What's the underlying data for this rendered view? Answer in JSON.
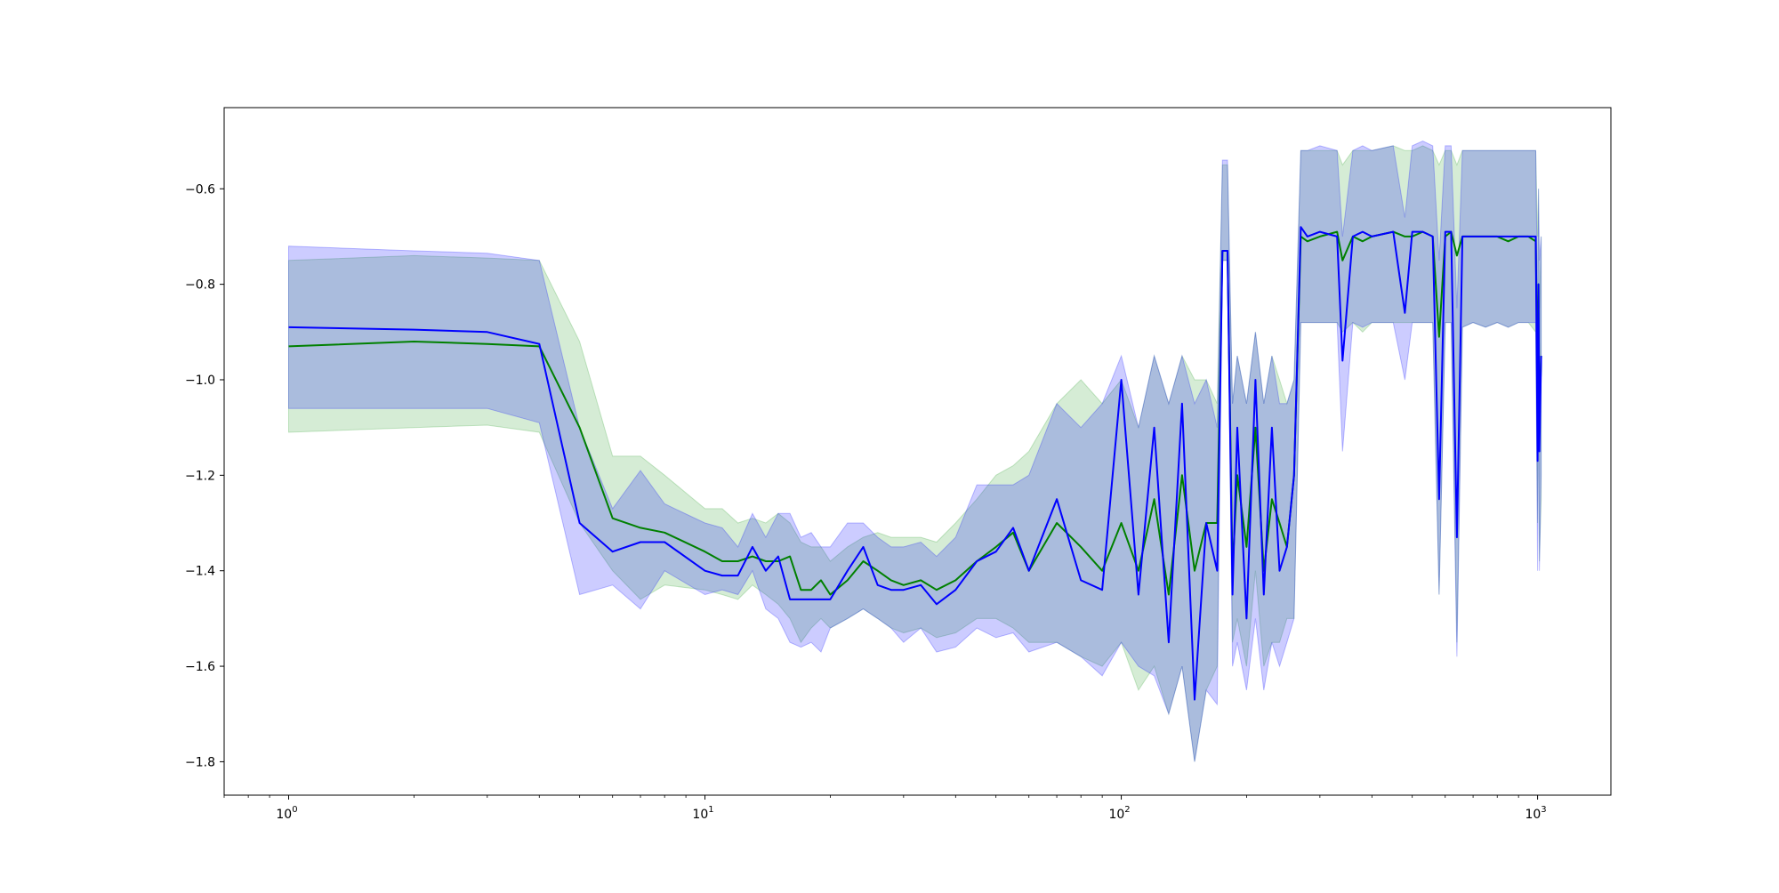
{
  "chart_data": {
    "type": "line",
    "title": "",
    "xlabel": "",
    "ylabel": "",
    "x_scale": "log",
    "xlim": [
      0.7,
      1500
    ],
    "ylim": [
      -1.87,
      -0.43
    ],
    "grid": false,
    "legend": "none",
    "x_ticks": [
      {
        "value": 1,
        "label": "10",
        "exp": "0"
      },
      {
        "value": 10,
        "label": "10",
        "exp": "1"
      },
      {
        "value": 100,
        "label": "10",
        "exp": "2"
      },
      {
        "value": 1000,
        "label": "10",
        "exp": "3"
      }
    ],
    "y_ticks": [
      {
        "value": -0.6,
        "label": "−0.6"
      },
      {
        "value": -0.8,
        "label": "−0.8"
      },
      {
        "value": -1.0,
        "label": "−1.0"
      },
      {
        "value": -1.2,
        "label": "−1.2"
      },
      {
        "value": -1.4,
        "label": "−1.4"
      },
      {
        "value": -1.6,
        "label": "−1.6"
      },
      {
        "value": -1.8,
        "label": "−1.8"
      }
    ],
    "series": [
      {
        "color": "#008000",
        "band_color": "#2ca02c",
        "x": [
          1,
          2,
          3,
          4,
          5,
          6,
          7,
          8,
          10,
          11,
          12,
          13,
          14,
          15,
          16,
          17,
          18,
          19,
          20,
          22,
          24,
          26,
          28,
          30,
          33,
          36,
          40,
          45,
          50,
          55,
          60,
          70,
          80,
          90,
          100,
          110,
          120,
          130,
          140,
          150,
          160,
          170,
          175,
          180,
          185,
          190,
          200,
          210,
          220,
          230,
          240,
          250,
          260,
          270,
          280,
          300,
          330,
          340,
          360,
          380,
          400,
          450,
          480,
          500,
          530,
          560,
          580,
          600,
          620,
          640,
          660,
          700,
          750,
          800,
          850,
          900,
          950,
          990,
          1000,
          1005,
          1010,
          1020
        ],
        "y": [
          -0.93,
          -0.92,
          -0.925,
          -0.93,
          -1.1,
          -1.29,
          -1.31,
          -1.32,
          -1.36,
          -1.38,
          -1.38,
          -1.37,
          -1.38,
          -1.38,
          -1.37,
          -1.44,
          -1.44,
          -1.42,
          -1.45,
          -1.42,
          -1.38,
          -1.4,
          -1.42,
          -1.43,
          -1.42,
          -1.44,
          -1.42,
          -1.38,
          -1.35,
          -1.32,
          -1.4,
          -1.3,
          -1.35,
          -1.4,
          -1.3,
          -1.4,
          -1.25,
          -1.45,
          -1.2,
          -1.4,
          -1.3,
          -1.3,
          -0.73,
          -0.73,
          -1.4,
          -1.2,
          -1.35,
          -1.1,
          -1.4,
          -1.25,
          -1.3,
          -1.35,
          -1.2,
          -0.7,
          -0.71,
          -0.7,
          -0.69,
          -0.75,
          -0.7,
          -0.71,
          -0.7,
          -0.69,
          -0.7,
          -0.7,
          -0.69,
          -0.7,
          -0.91,
          -0.7,
          -0.69,
          -0.74,
          -0.7,
          -0.7,
          -0.7,
          -0.7,
          -0.71,
          -0.7,
          -0.7,
          -0.71,
          -1.0,
          -0.8,
          -1.1,
          -0.95
        ],
        "lower": [
          -1.11,
          -1.1,
          -1.095,
          -1.11,
          -1.3,
          -1.4,
          -1.46,
          -1.43,
          -1.44,
          -1.45,
          -1.46,
          -1.43,
          -1.45,
          -1.47,
          -1.5,
          -1.55,
          -1.52,
          -1.5,
          -1.52,
          -1.5,
          -1.48,
          -1.5,
          -1.52,
          -1.53,
          -1.52,
          -1.54,
          -1.53,
          -1.5,
          -1.5,
          -1.52,
          -1.55,
          -1.55,
          -1.58,
          -1.6,
          -1.55,
          -1.65,
          -1.6,
          -1.7,
          -1.6,
          -1.8,
          -1.65,
          -1.6,
          -0.75,
          -0.75,
          -1.55,
          -1.5,
          -1.6,
          -1.4,
          -1.6,
          -1.55,
          -1.55,
          -1.5,
          -1.5,
          -0.88,
          -0.88,
          -0.88,
          -0.88,
          -0.9,
          -0.88,
          -0.9,
          -0.88,
          -0.88,
          -0.88,
          -0.88,
          -0.88,
          -0.88,
          -1.45,
          -0.88,
          -0.88,
          -1.55,
          -0.89,
          -0.88,
          -0.89,
          -0.88,
          -0.89,
          -0.88,
          -0.88,
          -0.9,
          -1.3,
          -1.0,
          -1.38,
          -1.25
        ],
        "upper": [
          -0.75,
          -0.74,
          -0.745,
          -0.75,
          -0.92,
          -1.16,
          -1.16,
          -1.2,
          -1.27,
          -1.27,
          -1.3,
          -1.29,
          -1.3,
          -1.28,
          -1.3,
          -1.34,
          -1.35,
          -1.35,
          -1.38,
          -1.35,
          -1.33,
          -1.32,
          -1.33,
          -1.33,
          -1.33,
          -1.34,
          -1.3,
          -1.25,
          -1.2,
          -1.18,
          -1.15,
          -1.05,
          -1.0,
          -1.05,
          -1.0,
          -1.1,
          -0.95,
          -1.05,
          -0.95,
          -1.0,
          -1.0,
          -1.05,
          -0.55,
          -0.55,
          -1.05,
          -0.95,
          -1.05,
          -0.9,
          -1.05,
          -0.95,
          -1.0,
          -1.05,
          -1.0,
          -0.52,
          -0.52,
          -0.52,
          -0.52,
          -0.55,
          -0.52,
          -0.52,
          -0.52,
          -0.51,
          -0.52,
          -0.52,
          -0.51,
          -0.52,
          -0.55,
          -0.52,
          -0.52,
          -0.55,
          -0.52,
          -0.52,
          -0.52,
          -0.52,
          -0.52,
          -0.52,
          -0.52,
          -0.52,
          -0.7,
          -0.6,
          -0.85,
          -0.7
        ]
      },
      {
        "color": "#0000ff",
        "band_color": "#0000ff",
        "x": [
          1,
          2,
          3,
          4,
          5,
          6,
          7,
          8,
          10,
          11,
          12,
          13,
          14,
          15,
          16,
          17,
          18,
          19,
          20,
          22,
          24,
          26,
          28,
          30,
          33,
          36,
          40,
          45,
          50,
          55,
          60,
          70,
          80,
          90,
          100,
          110,
          120,
          130,
          140,
          150,
          160,
          170,
          175,
          180,
          185,
          190,
          200,
          210,
          220,
          230,
          240,
          250,
          260,
          270,
          280,
          300,
          330,
          340,
          360,
          380,
          400,
          450,
          480,
          500,
          530,
          560,
          580,
          600,
          620,
          640,
          660,
          700,
          750,
          800,
          850,
          900,
          950,
          990,
          1000,
          1005,
          1010,
          1020
        ],
        "y": [
          -0.89,
          -0.895,
          -0.9,
          -0.925,
          -1.3,
          -1.36,
          -1.34,
          -1.34,
          -1.4,
          -1.41,
          -1.41,
          -1.35,
          -1.4,
          -1.37,
          -1.46,
          -1.46,
          -1.46,
          -1.46,
          -1.46,
          -1.4,
          -1.35,
          -1.43,
          -1.44,
          -1.44,
          -1.43,
          -1.47,
          -1.44,
          -1.38,
          -1.36,
          -1.31,
          -1.4,
          -1.25,
          -1.42,
          -1.44,
          -1.0,
          -1.45,
          -1.1,
          -1.55,
          -1.05,
          -1.67,
          -1.3,
          -1.4,
          -0.73,
          -0.73,
          -1.45,
          -1.1,
          -1.5,
          -1.0,
          -1.45,
          -1.1,
          -1.4,
          -1.35,
          -1.2,
          -0.68,
          -0.7,
          -0.69,
          -0.7,
          -0.96,
          -0.7,
          -0.69,
          -0.7,
          -0.69,
          -0.86,
          -0.69,
          -0.69,
          -0.7,
          -1.25,
          -0.69,
          -0.69,
          -1.33,
          -0.7,
          -0.7,
          -0.7,
          -0.7,
          -0.7,
          -0.7,
          -0.7,
          -0.7,
          -1.17,
          -0.8,
          -1.15,
          -0.95
        ],
        "lower": [
          -1.06,
          -1.06,
          -1.06,
          -1.09,
          -1.45,
          -1.43,
          -1.48,
          -1.4,
          -1.45,
          -1.44,
          -1.45,
          -1.4,
          -1.48,
          -1.5,
          -1.55,
          -1.56,
          -1.55,
          -1.57,
          -1.52,
          -1.5,
          -1.48,
          -1.5,
          -1.52,
          -1.55,
          -1.52,
          -1.57,
          -1.56,
          -1.52,
          -1.54,
          -1.53,
          -1.57,
          -1.55,
          -1.58,
          -1.62,
          -1.55,
          -1.6,
          -1.62,
          -1.7,
          -1.6,
          -1.8,
          -1.65,
          -1.68,
          -0.75,
          -0.75,
          -1.6,
          -1.55,
          -1.65,
          -1.5,
          -1.65,
          -1.55,
          -1.6,
          -1.55,
          -1.5,
          -0.88,
          -0.88,
          -0.88,
          -0.88,
          -1.15,
          -0.88,
          -0.89,
          -0.88,
          -0.88,
          -1.0,
          -0.88,
          -0.88,
          -0.88,
          -1.45,
          -0.88,
          -0.88,
          -1.58,
          -0.89,
          -0.88,
          -0.89,
          -0.88,
          -0.89,
          -0.88,
          -0.88,
          -0.88,
          -1.4,
          -1.0,
          -1.4,
          -1.2
        ],
        "upper": [
          -0.72,
          -0.73,
          -0.735,
          -0.75,
          -1.1,
          -1.27,
          -1.19,
          -1.26,
          -1.3,
          -1.31,
          -1.35,
          -1.28,
          -1.33,
          -1.28,
          -1.28,
          -1.33,
          -1.32,
          -1.35,
          -1.35,
          -1.3,
          -1.3,
          -1.33,
          -1.35,
          -1.35,
          -1.34,
          -1.37,
          -1.33,
          -1.22,
          -1.22,
          -1.22,
          -1.2,
          -1.05,
          -1.1,
          -1.05,
          -0.95,
          -1.1,
          -0.95,
          -1.05,
          -0.95,
          -1.05,
          -1.0,
          -1.1,
          -0.54,
          -0.54,
          -1.05,
          -0.95,
          -1.05,
          -0.9,
          -1.05,
          -0.95,
          -1.05,
          -1.05,
          -1.0,
          -0.52,
          -0.52,
          -0.51,
          -0.52,
          -0.7,
          -0.52,
          -0.51,
          -0.52,
          -0.51,
          -0.66,
          -0.51,
          -0.5,
          -0.51,
          -0.75,
          -0.51,
          -0.51,
          -0.85,
          -0.52,
          -0.52,
          -0.52,
          -0.52,
          -0.52,
          -0.52,
          -0.52,
          -0.52,
          -0.85,
          -0.6,
          -0.75,
          -0.7
        ]
      }
    ]
  }
}
